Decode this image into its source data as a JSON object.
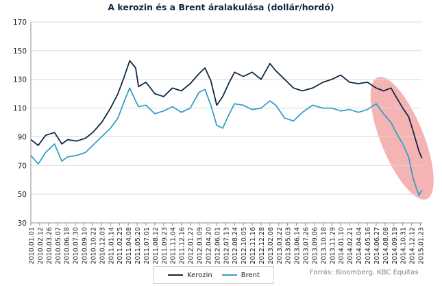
{
  "chart_data": {
    "type": "line",
    "title": "A kerozin  és a Brent áralakulása (dollár/hordó)",
    "source_note": "Forrás: Bloomberg, KBC Equitas",
    "ylim": [
      30,
      170
    ],
    "yticks": [
      30,
      50,
      70,
      90,
      110,
      130,
      150,
      170
    ],
    "grid": true,
    "legend_position": "bottom",
    "x_start": "2010.01.01",
    "x_end": "2015.01.31",
    "x_ticks": [
      "2010.01.01",
      "2010.02.12",
      "2010.03.26",
      "2010.05.07",
      "2010.06.18",
      "2010.07.30",
      "2010.09.10",
      "2010.10.22",
      "2010.12.03",
      "2011.01.14",
      "2011.02.25",
      "2011.04.08",
      "2011.05.20",
      "2011.07.01",
      "2011.08.12",
      "2011.09.23",
      "2011.11.04",
      "2011.12.16",
      "2012.01.27",
      "2012.03.09",
      "2012.04.20",
      "2012.06.01",
      "2012.07.13",
      "2012.08.24",
      "2012.10.05",
      "2012.11.16",
      "2012.12.28",
      "2013.02.08",
      "2013.03.22",
      "2013.05.03",
      "2013.06.14",
      "2013.07.26",
      "2013.09.06",
      "2013.10.18",
      "2013.11.29",
      "2014.01.10",
      "2014.02.21",
      "2014.04.04",
      "2014.05.16",
      "2014.06.27",
      "2014.08.08",
      "2014.09.19",
      "2014.10.31",
      "2014.12.12",
      "2015.01.23"
    ],
    "highlight": {
      "from": "2014.07.25",
      "to": "2015.01.31",
      "color": "#f4a6a6"
    },
    "series": [
      {
        "name": "Kerozin",
        "color": "#0e2841",
        "x": [
          "2010.01.01",
          "2010.02.05",
          "2010.03.12",
          "2010.04.23",
          "2010.05.28",
          "2010.06.25",
          "2010.08.06",
          "2010.09.17",
          "2010.10.22",
          "2010.12.03",
          "2011.01.14",
          "2011.02.18",
          "2011.03.18",
          "2011.04.15",
          "2011.05.13",
          "2011.05.27",
          "2011.07.01",
          "2011.08.12",
          "2011.09.23",
          "2011.11.04",
          "2011.12.16",
          "2012.01.27",
          "2012.03.09",
          "2012.04.06",
          "2012.05.04",
          "2012.06.01",
          "2012.06.29",
          "2012.07.27",
          "2012.08.24",
          "2012.10.05",
          "2012.11.16",
          "2012.12.28",
          "2013.02.08",
          "2013.03.08",
          "2013.04.19",
          "2013.05.31",
          "2013.07.12",
          "2013.08.30",
          "2013.10.18",
          "2013.11.29",
          "2014.01.10",
          "2014.02.21",
          "2014.04.04",
          "2014.05.16",
          "2014.06.27",
          "2014.08.01",
          "2014.09.05",
          "2014.10.03",
          "2014.10.31",
          "2014.11.28",
          "2014.12.19",
          "2015.01.16",
          "2015.01.30"
        ],
        "values": [
          88,
          84,
          91,
          93,
          85,
          88,
          87,
          89,
          93,
          100,
          110,
          120,
          131,
          143,
          138,
          125,
          128,
          120,
          118,
          124,
          122,
          127,
          134,
          138,
          129,
          112,
          118,
          127,
          135,
          132,
          135,
          130,
          141,
          136,
          130,
          124,
          122,
          124,
          128,
          130,
          133,
          128,
          127,
          128,
          124,
          122,
          124,
          117,
          110,
          104,
          94,
          80,
          75
        ]
      },
      {
        "name": "Brent",
        "color": "#31a0c6",
        "x": [
          "2010.01.01",
          "2010.02.05",
          "2010.03.12",
          "2010.04.23",
          "2010.05.28",
          "2010.06.25",
          "2010.08.06",
          "2010.09.17",
          "2010.10.22",
          "2010.12.03",
          "2011.01.14",
          "2011.02.18",
          "2011.03.18",
          "2011.04.15",
          "2011.05.13",
          "2011.05.27",
          "2011.07.01",
          "2011.08.12",
          "2011.09.23",
          "2011.11.04",
          "2011.12.16",
          "2012.01.27",
          "2012.03.09",
          "2012.04.06",
          "2012.05.04",
          "2012.06.01",
          "2012.06.29",
          "2012.07.27",
          "2012.08.24",
          "2012.10.05",
          "2012.11.16",
          "2012.12.28",
          "2013.02.08",
          "2013.03.08",
          "2013.04.19",
          "2013.05.31",
          "2013.07.12",
          "2013.08.30",
          "2013.10.18",
          "2013.11.29",
          "2014.01.10",
          "2014.02.21",
          "2014.04.04",
          "2014.05.16",
          "2014.06.27",
          "2014.08.01",
          "2014.09.05",
          "2014.10.03",
          "2014.10.31",
          "2014.11.28",
          "2014.12.19",
          "2015.01.16",
          "2015.01.30"
        ],
        "values": [
          77,
          71,
          79,
          85,
          73,
          76,
          77,
          79,
          84,
          90,
          96,
          103,
          114,
          124,
          115,
          111,
          112,
          106,
          108,
          111,
          107,
          110,
          121,
          123,
          112,
          98,
          96,
          105,
          113,
          112,
          109,
          110,
          115,
          112,
          103,
          101,
          107,
          112,
          110,
          110,
          108,
          109,
          107,
          109,
          113,
          106,
          100,
          92,
          85,
          76,
          61,
          49,
          53
        ]
      }
    ]
  },
  "legend": {
    "kerozin": "Kerozin",
    "brent": "Brent"
  }
}
